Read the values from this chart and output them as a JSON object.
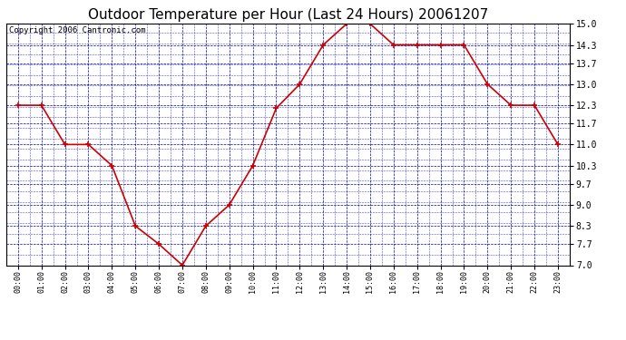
{
  "title": "Outdoor Temperature per Hour (Last 24 Hours) 20061207",
  "copyright": "Copyright 2006 Cantronic.com",
  "hours": [
    "00:00",
    "01:00",
    "02:00",
    "03:00",
    "04:00",
    "05:00",
    "06:00",
    "07:00",
    "08:00",
    "09:00",
    "10:00",
    "11:00",
    "12:00",
    "13:00",
    "14:00",
    "15:00",
    "16:00",
    "17:00",
    "18:00",
    "19:00",
    "20:00",
    "21:00",
    "22:00",
    "23:00"
  ],
  "temperatures": [
    12.3,
    12.3,
    11.0,
    11.0,
    10.3,
    8.3,
    7.7,
    7.0,
    8.3,
    9.0,
    10.3,
    12.2,
    13.0,
    14.3,
    15.0,
    15.0,
    14.3,
    14.3,
    14.3,
    14.3,
    13.0,
    12.3,
    12.3,
    11.0
  ],
  "ylim": [
    7.0,
    15.0
  ],
  "yticks": [
    7.0,
    7.7,
    8.3,
    9.0,
    9.7,
    10.3,
    11.0,
    11.7,
    12.3,
    13.0,
    13.7,
    14.3,
    15.0
  ],
  "line_color": "#cc0000",
  "marker_color": "#cc0000",
  "grid_color": "#0000bb",
  "bg_color": "#ffffff",
  "plot_bg_color": "#ffffff",
  "title_fontsize": 11,
  "copyright_fontsize": 6.5,
  "tick_fontsize": 7,
  "xtick_fontsize": 6
}
